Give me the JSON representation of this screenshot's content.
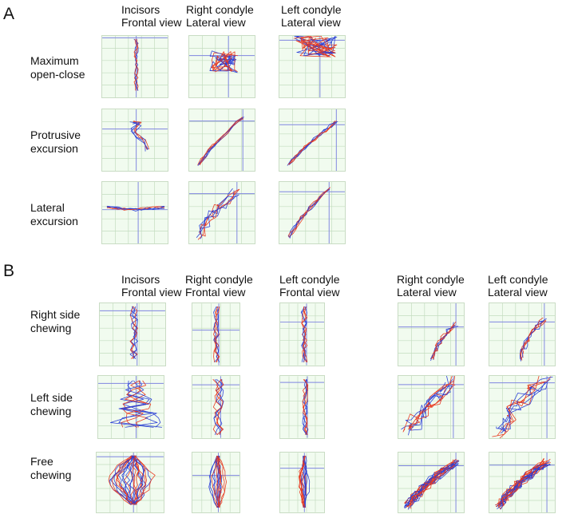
{
  "panels": [
    {
      "letter": "A",
      "columns": [
        "Incisors\nFrontal view",
        "Right condyle\nLateral view",
        "Left condyle\nLateral view"
      ],
      "rows": [
        "Maximum\nopen-close",
        "Protrusive\nexcursion",
        "Lateral\nexcursion"
      ]
    },
    {
      "letter": "B",
      "columns": [
        "Incisors\nFrontal view",
        "Right condyle\nFrontal view",
        "Left condyle\nFrontal view",
        "Right condyle\nLateral view",
        "Left condyle\nLateral view"
      ],
      "rows": [
        "Right side\nchewing",
        "Left side\nchewing",
        "Free\nchewing"
      ]
    }
  ],
  "colors": {
    "trace_blue": "#2b3fd6",
    "trace_red": "#e8391f",
    "axis_line": "#7f86e0",
    "grid_line": "#c3dcbf",
    "plot_bg": "#f1fbef"
  },
  "traces": [
    {
      "shape": "vertical-loop",
      "count": 4
    },
    {
      "shape": "tangle",
      "count": 6
    },
    {
      "shape": "tangle-wide",
      "count": 6
    },
    {
      "shape": "hook",
      "count": 5
    },
    {
      "shape": "diag-line",
      "count": 6
    },
    {
      "shape": "diag-line",
      "count": 6
    },
    {
      "shape": "horizontal-line",
      "count": 5
    },
    {
      "shape": "diag-scatter",
      "count": 7
    },
    {
      "shape": "diag-line",
      "count": 6
    },
    {
      "shape": "vertical-loop-thin",
      "count": 5
    },
    {
      "shape": "vertical-bundle",
      "count": 6
    },
    {
      "shape": "vertical-bundle",
      "count": 6
    },
    {
      "shape": "diag-steep",
      "count": 6
    },
    {
      "shape": "diag-steep",
      "count": 6
    },
    {
      "shape": "wide-fan",
      "count": 7
    },
    {
      "shape": "vertical-bundle-wide",
      "count": 6
    },
    {
      "shape": "vertical-bundle",
      "count": 6
    },
    {
      "shape": "diag-wide-band",
      "count": 8
    },
    {
      "shape": "diag-wide-band",
      "count": 7
    },
    {
      "shape": "dense-fan",
      "count": 28
    },
    {
      "shape": "dense-drop",
      "count": 16
    },
    {
      "shape": "dense-drop-thin",
      "count": 14
    },
    {
      "shape": "diag-dense",
      "count": 22
    },
    {
      "shape": "diag-dense",
      "count": 22
    }
  ]
}
